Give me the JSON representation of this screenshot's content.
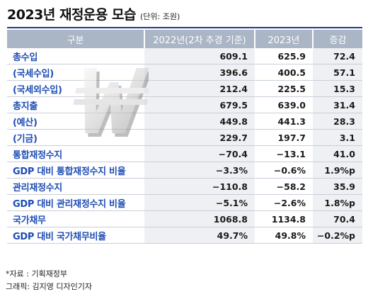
{
  "title": "2023년 재정운용 모습",
  "unit": "(단위: 조원)",
  "headers": [
    "구분",
    "2022년(2차 추경 기준)",
    "2023년",
    "증감"
  ],
  "rows": [
    {
      "label": "총수입",
      "y2022": "609.1",
      "y2023": "625.9",
      "diff": "72.4"
    },
    {
      "label": "(국세수입)",
      "y2022": "396.6",
      "y2023": "400.5",
      "diff": "57.1"
    },
    {
      "label": "(국세외수입)",
      "y2022": "212.4",
      "y2023": "225.5",
      "diff": "15.3"
    },
    {
      "label": "총지출",
      "y2022": "679.5",
      "y2023": "639.0",
      "diff": "31.4"
    },
    {
      "label": "(예산)",
      "y2022": "449.8",
      "y2023": "441.3",
      "diff": "28.3"
    },
    {
      "label": "(기금)",
      "y2022": "229.7",
      "y2023": "197.7",
      "diff": "3.1"
    },
    {
      "label": "통합재정수지",
      "y2022": "−70.4",
      "y2023": "−13.1",
      "diff": "41.0"
    },
    {
      "label": "GDP 대비 통합재정수지 비율",
      "y2022": "−3.3%",
      "y2023": "−0.6%",
      "diff": "1.9%p"
    },
    {
      "label": "관리재정수지",
      "y2022": "−110.8",
      "y2023": "−58.2",
      "diff": "35.9"
    },
    {
      "label": "GDP 대비 관리재정수지 비율",
      "y2022": "−5.1%",
      "y2023": "−2.6%",
      "diff": "1.8%p"
    },
    {
      "label": "국가채무",
      "y2022": "1068.8",
      "y2023": "1134.8",
      "diff": "70.4"
    },
    {
      "label": "GDP 대비 국가채무비율",
      "y2022": "49.7%",
      "y2023": "49.8%",
      "diff": "−0.2%p"
    }
  ],
  "source": "*자료 : 기획재정부",
  "credit": "그래픽: 김지영 디자인기자",
  "colors": {
    "accent": "#1e4db5",
    "header_bg": "#aab5c5",
    "rule": "#1f3b8a"
  },
  "decoration_icon": "won-sign-icon"
}
